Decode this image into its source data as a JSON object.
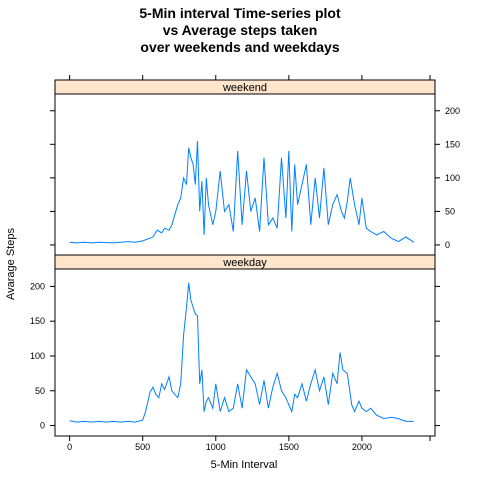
{
  "chart_data": {
    "type": "line",
    "title": [
      "5-Min interval Time-series plot",
      "vs Average steps taken",
      "over weekends and weekdays"
    ],
    "xlabel": "5-Min Interval",
    "ylabel": "Avarage Steps",
    "xlim": [
      -100,
      2500
    ],
    "ylim": [
      -15,
      225
    ],
    "x_ticks": [
      0,
      500,
      1000,
      1500,
      2000
    ],
    "y_ticks": [
      0,
      50,
      100,
      150,
      200
    ],
    "line_color": "#0080ff",
    "strip_color": "#ffe5cc",
    "panels": [
      {
        "name": "weekend",
        "x": [
          0,
          50,
          100,
          150,
          200,
          300,
          400,
          450,
          500,
          550,
          570,
          600,
          630,
          650,
          680,
          700,
          720,
          740,
          760,
          780,
          800,
          815,
          830,
          845,
          860,
          875,
          890,
          905,
          920,
          935,
          950,
          980,
          1000,
          1030,
          1060,
          1090,
          1120,
          1150,
          1180,
          1210,
          1240,
          1270,
          1300,
          1330,
          1360,
          1390,
          1420,
          1450,
          1480,
          1500,
          1520,
          1540,
          1560,
          1590,
          1620,
          1650,
          1680,
          1710,
          1740,
          1770,
          1800,
          1830,
          1860,
          1880,
          1900,
          1920,
          1950,
          1980,
          2000,
          2030,
          2060,
          2100,
          2150,
          2200,
          2250,
          2300,
          2355
        ],
        "y": [
          4,
          3,
          4,
          3,
          4,
          3,
          5,
          4,
          6,
          10,
          12,
          22,
          18,
          25,
          22,
          30,
          45,
          60,
          70,
          100,
          90,
          145,
          130,
          120,
          90,
          155,
          50,
          95,
          15,
          100,
          60,
          30,
          50,
          110,
          50,
          60,
          20,
          140,
          30,
          110,
          50,
          70,
          20,
          130,
          30,
          40,
          25,
          130,
          40,
          140,
          20,
          120,
          60,
          90,
          120,
          30,
          100,
          40,
          115,
          30,
          60,
          75,
          50,
          40,
          65,
          100,
          60,
          30,
          70,
          25,
          20,
          15,
          20,
          10,
          5,
          12,
          4
        ]
      },
      {
        "name": "weekday",
        "x": [
          0,
          50,
          100,
          150,
          200,
          250,
          300,
          350,
          400,
          450,
          500,
          520,
          550,
          570,
          590,
          610,
          630,
          650,
          680,
          700,
          720,
          740,
          760,
          780,
          800,
          815,
          830,
          845,
          860,
          875,
          890,
          905,
          920,
          935,
          950,
          980,
          1000,
          1030,
          1060,
          1090,
          1120,
          1150,
          1180,
          1210,
          1240,
          1270,
          1300,
          1330,
          1360,
          1390,
          1420,
          1450,
          1480,
          1500,
          1520,
          1540,
          1560,
          1590,
          1620,
          1650,
          1680,
          1710,
          1740,
          1770,
          1800,
          1830,
          1850,
          1870,
          1900,
          1930,
          1950,
          1980,
          2000,
          2030,
          2060,
          2100,
          2150,
          2200,
          2250,
          2300,
          2355
        ],
        "y": [
          7,
          5,
          6,
          5,
          6,
          5,
          6,
          5,
          6,
          5,
          8,
          20,
          48,
          55,
          45,
          40,
          60,
          52,
          70,
          50,
          45,
          40,
          60,
          130,
          170,
          205,
          180,
          170,
          160,
          158,
          60,
          80,
          20,
          35,
          40,
          25,
          60,
          20,
          40,
          20,
          25,
          60,
          25,
          80,
          70,
          60,
          30,
          65,
          25,
          55,
          75,
          50,
          40,
          30,
          20,
          45,
          40,
          60,
          35,
          60,
          80,
          50,
          70,
          30,
          75,
          60,
          105,
          80,
          75,
          30,
          20,
          35,
          25,
          20,
          25,
          15,
          10,
          12,
          10,
          6,
          6
        ]
      }
    ]
  }
}
